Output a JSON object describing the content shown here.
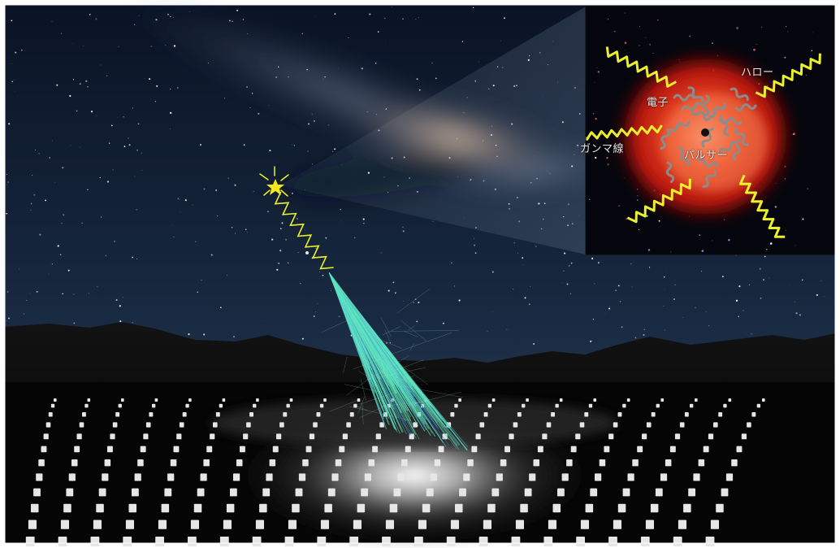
{
  "inset": {
    "labels": {
      "halo": "ハロー",
      "electron": "電子",
      "gamma": "ガンマ線",
      "pulsar": "パルサー"
    }
  },
  "colors": {
    "sky_top": "#0b1426",
    "sky_bottom": "#203752",
    "ground": "#050505",
    "gamma_ray": "#ecf02a",
    "shower": "#5fe6c0",
    "nebula": "#e23a1e",
    "electron": "#8c8c8c"
  }
}
